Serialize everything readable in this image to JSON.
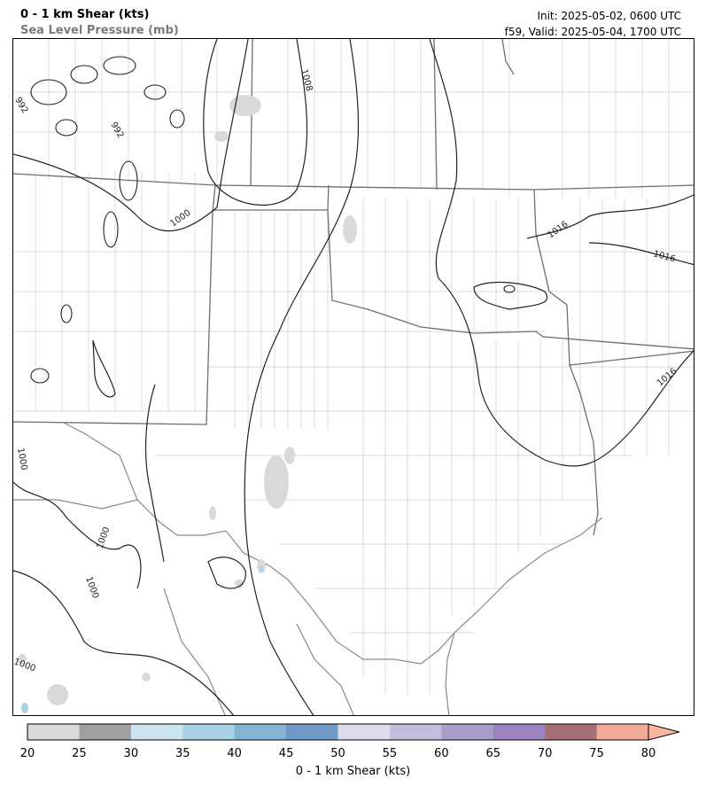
{
  "header": {
    "title": "0 - 1 km Shear (kts)",
    "subtitle": "Sea Level Pressure (mb)",
    "init": "Init: 2025-05-02, 0600 UTC",
    "valid": "f59, Valid: 2025-05-04, 1700 UTC"
  },
  "map": {
    "isobar_labels": [
      "992",
      "992",
      "1000",
      "1008",
      "1016",
      "1016",
      "1016",
      "1000",
      "1000",
      "1000",
      "1000"
    ]
  },
  "colorbar": {
    "label": "0 - 1 km Shear (kts)",
    "ticks": [
      "20",
      "25",
      "30",
      "35",
      "40",
      "45",
      "50",
      "55",
      "60",
      "65",
      "70",
      "75",
      "80"
    ],
    "colors": [
      "#d9d9d9",
      "#a0a0a0",
      "#cce3f0",
      "#a9d0e4",
      "#84b3d6",
      "#6f9ac7",
      "#dcdcea",
      "#c2bfdc",
      "#a99ccb",
      "#9b83bf",
      "#a66f76",
      "#f3ab98"
    ],
    "extend_color": "#f9b6a0"
  },
  "colors": {
    "state_border": "#6e6e6e",
    "county_border": "#c8c8c8",
    "isobar": "#222222",
    "coast": "#888888",
    "shear_light": "#d9d9d9"
  }
}
